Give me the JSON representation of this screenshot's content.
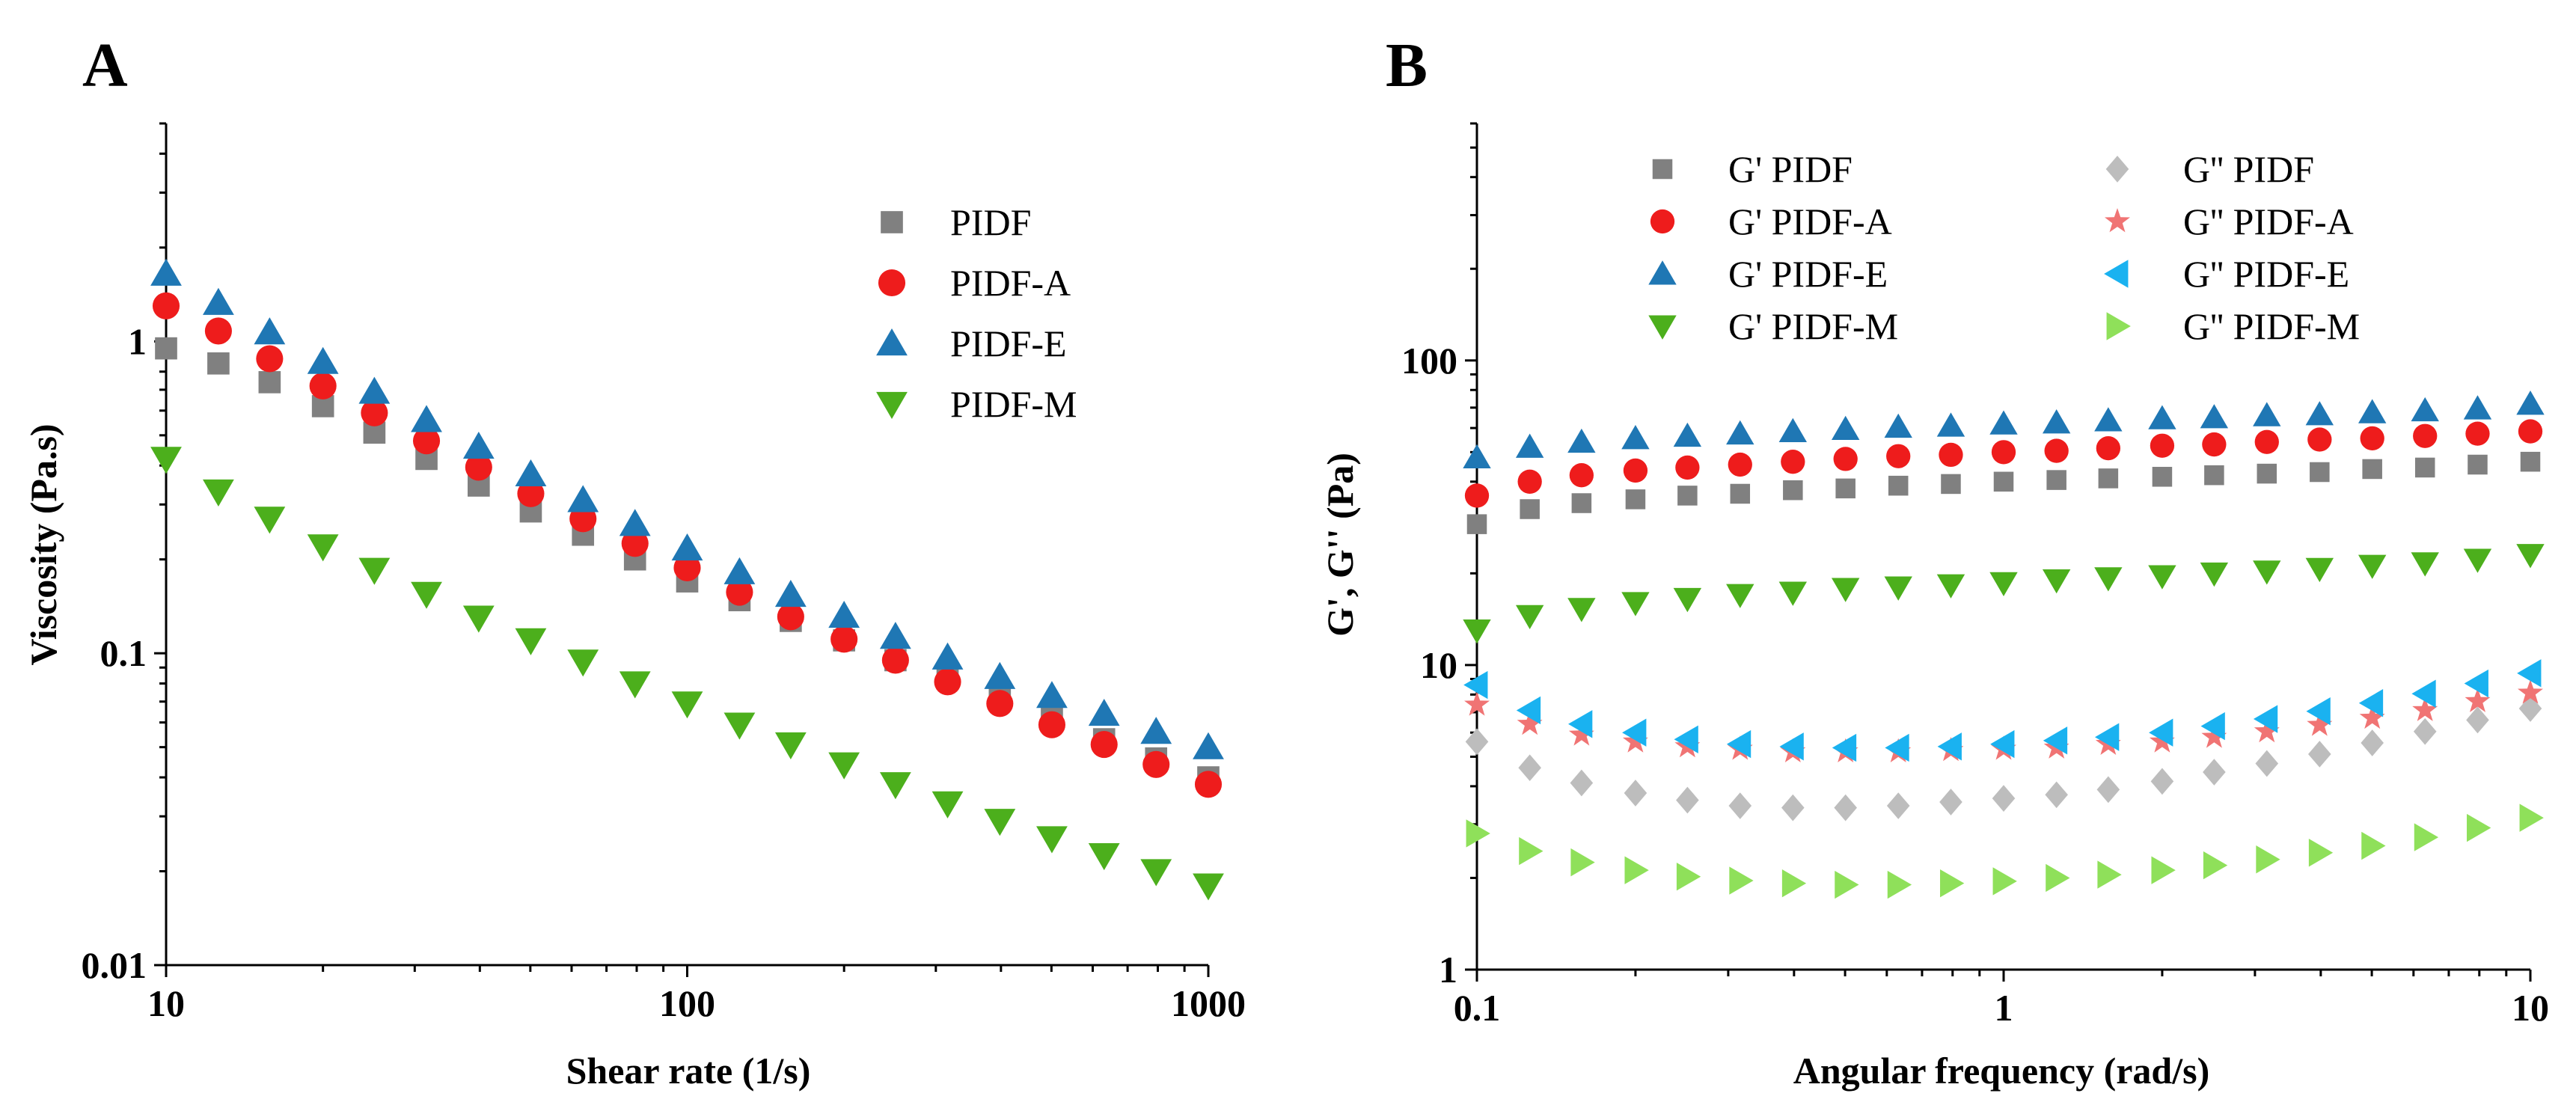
{
  "chart_data": [
    {
      "panel": "A",
      "type": "scatter",
      "title": "",
      "xlabel": "Shear rate (1/s)",
      "ylabel": "Viscosity (Pa.s)",
      "xscale": "log",
      "yscale": "log",
      "xlim": [
        10,
        1000
      ],
      "ylim": [
        0.01,
        5
      ],
      "x_tick_labels": [
        "10",
        "100",
        "1000"
      ],
      "y_tick_labels": [
        "0.01",
        "0.1",
        "1"
      ],
      "legend_position": "top-right",
      "x": [
        10,
        12.6,
        15.8,
        20,
        25.1,
        31.6,
        39.8,
        50.1,
        63.1,
        79.4,
        100,
        126,
        158,
        200,
        251,
        316,
        398,
        501,
        631,
        794,
        1000
      ],
      "series": [
        {
          "name": "PIDF",
          "marker": "square",
          "color": "#808080",
          "values": [
            0.95,
            0.85,
            0.74,
            0.62,
            0.51,
            0.42,
            0.345,
            0.285,
            0.24,
            0.2,
            0.17,
            0.148,
            0.127,
            0.11,
            0.095,
            0.083,
            0.072,
            0.062,
            0.053,
            0.046,
            0.04
          ]
        },
        {
          "name": "PIDF-A",
          "marker": "circle",
          "color": "#ee1c1c",
          "values": [
            1.3,
            1.08,
            0.88,
            0.72,
            0.59,
            0.48,
            0.395,
            0.325,
            0.27,
            0.225,
            0.188,
            0.157,
            0.131,
            0.111,
            0.095,
            0.081,
            0.069,
            0.059,
            0.051,
            0.044,
            0.038
          ]
        },
        {
          "name": "PIDF-E",
          "marker": "triangle-up",
          "color": "#1f77b4",
          "values": [
            1.65,
            1.33,
            1.07,
            0.86,
            0.69,
            0.56,
            0.46,
            0.375,
            0.31,
            0.26,
            0.217,
            0.182,
            0.154,
            0.132,
            0.113,
            0.097,
            0.084,
            0.073,
            0.064,
            0.056,
            0.05
          ]
        },
        {
          "name": "PIDF-M",
          "marker": "triangle-down",
          "color": "#4caf1c",
          "values": [
            0.42,
            0.33,
            0.27,
            0.22,
            0.185,
            0.155,
            0.13,
            0.11,
            0.094,
            0.08,
            0.069,
            0.059,
            0.051,
            0.044,
            0.038,
            0.033,
            0.029,
            0.0255,
            0.0225,
            0.02,
            0.018
          ]
        }
      ]
    },
    {
      "panel": "B",
      "type": "scatter",
      "title": "",
      "xlabel": "Angular frequency (rad/s)",
      "ylabel": "G', G'' (Pa)",
      "xscale": "log",
      "yscale": "log",
      "xlim": [
        0.1,
        10
      ],
      "ylim": [
        1,
        600
      ],
      "x_tick_labels": [
        "0.1",
        "1",
        "10"
      ],
      "y_tick_labels": [
        "1",
        "10",
        "100"
      ],
      "legend_position": "top",
      "x": [
        0.1,
        0.126,
        0.158,
        0.2,
        0.251,
        0.316,
        0.398,
        0.501,
        0.631,
        0.794,
        1,
        1.26,
        1.58,
        2,
        2.51,
        3.16,
        3.98,
        5.01,
        6.31,
        7.94,
        10
      ],
      "series": [
        {
          "name": "G' PIDF",
          "marker": "square",
          "color": "#808080",
          "values": [
            29,
            32.5,
            34,
            35,
            36,
            36.5,
            37.5,
            38,
            38.8,
            39.3,
            40,
            40.5,
            41,
            41.5,
            42,
            42.5,
            43,
            44,
            44.5,
            45.5,
            46.5
          ]
        },
        {
          "name": "G' PIDF-A",
          "marker": "circle",
          "color": "#ee1c1c",
          "values": [
            36,
            40,
            42,
            43.5,
            44.5,
            45.5,
            46.5,
            47.5,
            48.5,
            49,
            50,
            50.5,
            51.5,
            52.5,
            53,
            54,
            55,
            55.5,
            56.5,
            57.5,
            58.5
          ]
        },
        {
          "name": "G' PIDF-E",
          "marker": "triangle-up",
          "color": "#1f77b4",
          "values": [
            48,
            52,
            54,
            55.5,
            56.5,
            57.5,
            58.5,
            59.5,
            60.5,
            61,
            62,
            62.5,
            63.5,
            64.5,
            65,
            66,
            66.5,
            67.5,
            68.5,
            69.5,
            72
          ]
        },
        {
          "name": "G' PIDF-M",
          "marker": "triangle-down",
          "color": "#4caf1c",
          "values": [
            13,
            14.5,
            15.3,
            16,
            16.5,
            17,
            17.3,
            17.8,
            18,
            18.3,
            18.6,
            19,
            19.3,
            19.6,
            20,
            20.3,
            20.7,
            21.2,
            21.6,
            22.2,
            23
          ]
        },
        {
          "name": "G'' PIDF",
          "marker": "diamond",
          "color": "#bdbdbd",
          "values": [
            5.6,
            4.6,
            4.1,
            3.8,
            3.6,
            3.45,
            3.4,
            3.4,
            3.45,
            3.55,
            3.65,
            3.75,
            3.9,
            4.15,
            4.45,
            4.75,
            5.1,
            5.55,
            6.05,
            6.6,
            7.2
          ]
        },
        {
          "name": "G'' PIDF-A",
          "marker": "star",
          "color": "#f07474",
          "values": [
            7.4,
            6.4,
            5.9,
            5.6,
            5.4,
            5.3,
            5.2,
            5.2,
            5.2,
            5.25,
            5.3,
            5.35,
            5.5,
            5.6,
            5.8,
            6.05,
            6.35,
            6.7,
            7.1,
            7.6,
            8.1
          ]
        },
        {
          "name": "G'' PIDF-E",
          "marker": "triangle-left",
          "color": "#1ab2f0",
          "values": [
            8.6,
            7.1,
            6.4,
            6.0,
            5.7,
            5.5,
            5.4,
            5.35,
            5.35,
            5.4,
            5.5,
            5.65,
            5.8,
            6.0,
            6.3,
            6.65,
            7.05,
            7.5,
            8.05,
            8.7,
            9.4
          ]
        },
        {
          "name": "G'' PIDF-M",
          "marker": "triangle-right",
          "color": "#8fe05a",
          "values": [
            2.8,
            2.45,
            2.25,
            2.12,
            2.02,
            1.96,
            1.92,
            1.9,
            1.9,
            1.92,
            1.95,
            2.0,
            2.05,
            2.12,
            2.2,
            2.3,
            2.42,
            2.55,
            2.72,
            2.92,
            3.15
          ]
        }
      ]
    }
  ]
}
